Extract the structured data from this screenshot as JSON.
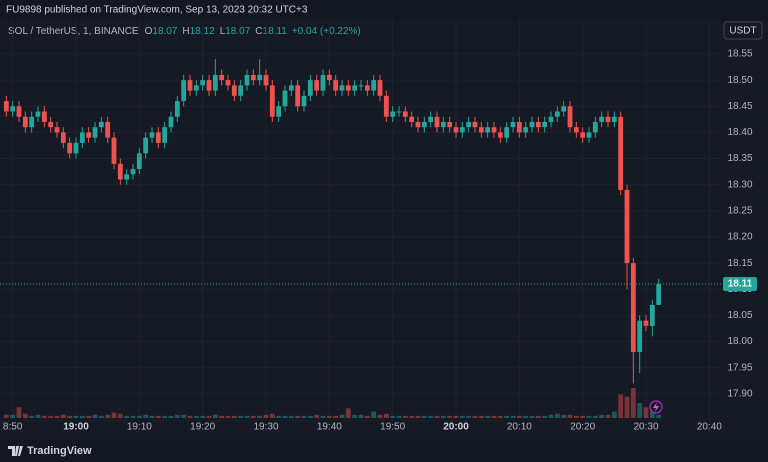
{
  "header": {
    "published": "FU9898 published on TradingView.com, Sep 13, 2023 20:32 UTC+3",
    "symbol": "SOL / TetherUS, 1, BINANCE",
    "legend": [
      {
        "key": "O",
        "value": "18.07"
      },
      {
        "key": "H",
        "value": "18.12"
      },
      {
        "key": "L",
        "value": "18.07"
      },
      {
        "key": "C",
        "value": "18.11"
      }
    ],
    "change": "+0.04 (+0.22%)",
    "currency": "USDT"
  },
  "footer": {
    "logo": "TradingView"
  },
  "chart_data": {
    "type": "candlestick",
    "up_color": "#26a69a",
    "down_color": "#ef5350",
    "grid": true,
    "x": [
      "18:49",
      "18:50",
      "18:51",
      "18:52",
      "18:53",
      "18:54",
      "18:55",
      "18:56",
      "18:57",
      "18:58",
      "18:59",
      "19:00",
      "19:01",
      "19:02",
      "19:03",
      "19:04",
      "19:05",
      "19:06",
      "19:07",
      "19:08",
      "19:09",
      "19:10",
      "19:11",
      "19:12",
      "19:13",
      "19:14",
      "19:15",
      "19:16",
      "19:17",
      "19:18",
      "19:19",
      "19:20",
      "19:21",
      "19:22",
      "19:23",
      "19:24",
      "19:25",
      "19:26",
      "19:27",
      "19:28",
      "19:29",
      "19:30",
      "19:31",
      "19:32",
      "19:33",
      "19:34",
      "19:35",
      "19:36",
      "19:37",
      "19:38",
      "19:39",
      "19:40",
      "19:41",
      "19:42",
      "19:43",
      "19:44",
      "19:45",
      "19:46",
      "19:47",
      "19:48",
      "19:49",
      "19:50",
      "19:51",
      "19:52",
      "19:53",
      "19:54",
      "19:55",
      "19:56",
      "19:57",
      "19:58",
      "19:59",
      "20:00",
      "20:01",
      "20:02",
      "20:03",
      "20:04",
      "20:05",
      "20:06",
      "20:07",
      "20:08",
      "20:09",
      "20:10",
      "20:11",
      "20:12",
      "20:13",
      "20:14",
      "20:15",
      "20:16",
      "20:17",
      "20:18",
      "20:19",
      "20:20",
      "20:21",
      "20:22",
      "20:23",
      "20:24",
      "20:25",
      "20:26",
      "20:27",
      "20:28",
      "20:29",
      "20:30",
      "20:31",
      "20:32"
    ],
    "open": [
      18.46,
      18.44,
      18.45,
      18.43,
      18.41,
      18.43,
      18.44,
      18.42,
      18.41,
      18.4,
      18.38,
      18.36,
      18.38,
      18.4,
      18.39,
      18.41,
      18.42,
      18.39,
      18.34,
      18.31,
      18.32,
      18.33,
      18.36,
      18.39,
      18.4,
      18.38,
      18.41,
      18.43,
      18.46,
      18.5,
      18.48,
      18.49,
      18.5,
      18.48,
      18.51,
      18.5,
      18.49,
      18.47,
      18.49,
      18.51,
      18.5,
      18.51,
      18.49,
      18.43,
      18.45,
      18.48,
      18.49,
      18.45,
      18.47,
      18.5,
      18.48,
      18.51,
      18.5,
      18.48,
      18.49,
      18.48,
      18.49,
      18.49,
      18.48,
      18.5,
      18.47,
      18.43,
      18.44,
      18.44,
      18.43,
      18.42,
      18.41,
      18.42,
      18.43,
      18.41,
      18.42,
      18.41,
      18.4,
      18.41,
      18.42,
      18.41,
      18.4,
      18.41,
      18.4,
      18.39,
      18.41,
      18.42,
      18.4,
      18.41,
      18.42,
      18.41,
      18.42,
      18.43,
      18.44,
      18.45,
      18.41,
      18.4,
      18.39,
      18.4,
      18.42,
      18.43,
      18.42,
      18.43,
      18.29,
      18.15,
      17.98,
      18.04,
      18.03,
      18.07
    ],
    "high": [
      18.47,
      18.46,
      18.46,
      18.44,
      18.44,
      18.45,
      18.45,
      18.43,
      18.42,
      18.41,
      18.39,
      18.39,
      18.41,
      18.41,
      18.42,
      18.43,
      18.43,
      18.4,
      18.35,
      18.33,
      18.34,
      18.37,
      18.4,
      18.41,
      18.41,
      18.42,
      18.44,
      18.47,
      18.51,
      18.51,
      18.5,
      18.51,
      18.51,
      18.54,
      18.52,
      18.51,
      18.5,
      18.5,
      18.52,
      18.52,
      18.54,
      18.52,
      18.5,
      18.46,
      18.49,
      18.5,
      18.5,
      18.48,
      18.51,
      18.51,
      18.52,
      18.52,
      18.51,
      18.5,
      18.5,
      18.5,
      18.5,
      18.5,
      18.51,
      18.51,
      18.48,
      18.45,
      18.45,
      18.45,
      18.44,
      18.43,
      18.43,
      18.44,
      18.44,
      18.43,
      18.43,
      18.42,
      18.42,
      18.43,
      18.43,
      18.42,
      18.42,
      18.42,
      18.41,
      18.42,
      18.43,
      18.43,
      18.42,
      18.43,
      18.43,
      18.43,
      18.44,
      18.45,
      18.46,
      18.46,
      18.42,
      18.41,
      18.41,
      18.43,
      18.44,
      18.44,
      18.44,
      18.44,
      18.3,
      18.16,
      18.05,
      18.05,
      18.08,
      18.12
    ],
    "low": [
      18.43,
      18.43,
      18.42,
      18.4,
      18.4,
      18.42,
      18.41,
      18.4,
      18.39,
      18.37,
      18.35,
      18.35,
      18.37,
      18.38,
      18.38,
      18.4,
      18.38,
      18.33,
      18.3,
      18.3,
      18.31,
      18.32,
      18.35,
      18.38,
      18.37,
      18.37,
      18.4,
      18.42,
      18.45,
      18.47,
      18.47,
      18.48,
      18.47,
      18.47,
      18.49,
      18.48,
      18.46,
      18.46,
      18.48,
      18.49,
      18.49,
      18.48,
      18.42,
      18.42,
      18.44,
      18.47,
      18.44,
      18.44,
      18.46,
      18.47,
      18.47,
      18.49,
      18.47,
      18.47,
      18.47,
      18.47,
      18.48,
      18.47,
      18.47,
      18.46,
      18.42,
      18.42,
      18.43,
      18.42,
      18.41,
      18.4,
      18.4,
      18.41,
      18.4,
      18.4,
      18.4,
      18.39,
      18.39,
      18.4,
      18.4,
      18.39,
      18.39,
      18.39,
      18.38,
      18.38,
      18.4,
      18.39,
      18.39,
      18.4,
      18.4,
      18.4,
      18.41,
      18.42,
      18.43,
      18.4,
      18.39,
      18.38,
      18.38,
      18.39,
      18.41,
      18.41,
      18.41,
      18.28,
      18.1,
      17.92,
      17.94,
      18.02,
      18.01,
      18.07
    ],
    "close": [
      18.44,
      18.45,
      18.43,
      18.41,
      18.43,
      18.44,
      18.42,
      18.41,
      18.4,
      18.38,
      18.36,
      18.38,
      18.4,
      18.39,
      18.41,
      18.42,
      18.39,
      18.34,
      18.31,
      18.32,
      18.33,
      18.36,
      18.39,
      18.4,
      18.38,
      18.41,
      18.43,
      18.46,
      18.5,
      18.48,
      18.49,
      18.5,
      18.48,
      18.51,
      18.5,
      18.49,
      18.47,
      18.49,
      18.51,
      18.5,
      18.51,
      18.49,
      18.43,
      18.45,
      18.48,
      18.49,
      18.45,
      18.47,
      18.5,
      18.48,
      18.51,
      18.5,
      18.48,
      18.49,
      18.48,
      18.49,
      18.49,
      18.48,
      18.5,
      18.47,
      18.43,
      18.44,
      18.44,
      18.43,
      18.42,
      18.41,
      18.42,
      18.43,
      18.41,
      18.42,
      18.41,
      18.4,
      18.41,
      18.42,
      18.41,
      18.4,
      18.41,
      18.4,
      18.39,
      18.41,
      18.42,
      18.4,
      18.41,
      18.42,
      18.41,
      18.42,
      18.43,
      18.44,
      18.45,
      18.41,
      18.4,
      18.39,
      18.4,
      18.42,
      18.43,
      18.42,
      18.43,
      18.29,
      18.15,
      17.98,
      18.04,
      18.03,
      18.07,
      18.11
    ],
    "volume": [
      3,
      3,
      10,
      4,
      2,
      3,
      2,
      2,
      2,
      3,
      2,
      2,
      2,
      2,
      3,
      2,
      3,
      5,
      4,
      2,
      2,
      2,
      3,
      2,
      2,
      2,
      2,
      3,
      3,
      2,
      2,
      2,
      2,
      3,
      2,
      2,
      2,
      2,
      2,
      2,
      2,
      3,
      4,
      2,
      2,
      2,
      2,
      2,
      2,
      3,
      2,
      2,
      2,
      3,
      9,
      3,
      3,
      2,
      6,
      3,
      4,
      2,
      2,
      2,
      2,
      2,
      2,
      2,
      2,
      2,
      2,
      2,
      2,
      2,
      2,
      2,
      2,
      2,
      2,
      2,
      2,
      2,
      2,
      2,
      2,
      2,
      3,
      4,
      3,
      3,
      2,
      2,
      2,
      2,
      3,
      3,
      6,
      22,
      20,
      28,
      14,
      10,
      6,
      3
    ],
    "xlim": [
      "18:48",
      "20:42"
    ],
    "xticks": [
      {
        "value": "18:50",
        "label": "8:50"
      },
      "19:00",
      "19:10",
      "19:20",
      "19:30",
      "19:40",
      "19:50",
      "20:00",
      "20:10",
      "20:20",
      "20:30",
      "20:40"
    ],
    "ylim": [
      17.85,
      18.615
    ],
    "yticks": [
      {
        "value": 17.9,
        "label": "17.90"
      },
      17.95,
      {
        "value": 18.0,
        "label": "18.00"
      },
      18.05,
      {
        "value": 18.1,
        "label": "18.10"
      },
      18.15,
      {
        "value": 18.2,
        "label": "18.20"
      },
      18.25,
      {
        "value": 18.3,
        "label": "18.30"
      },
      18.35,
      {
        "value": 18.4,
        "label": "18.40"
      },
      18.45,
      {
        "value": 18.5,
        "label": "18.50"
      },
      18.55
    ]
  }
}
